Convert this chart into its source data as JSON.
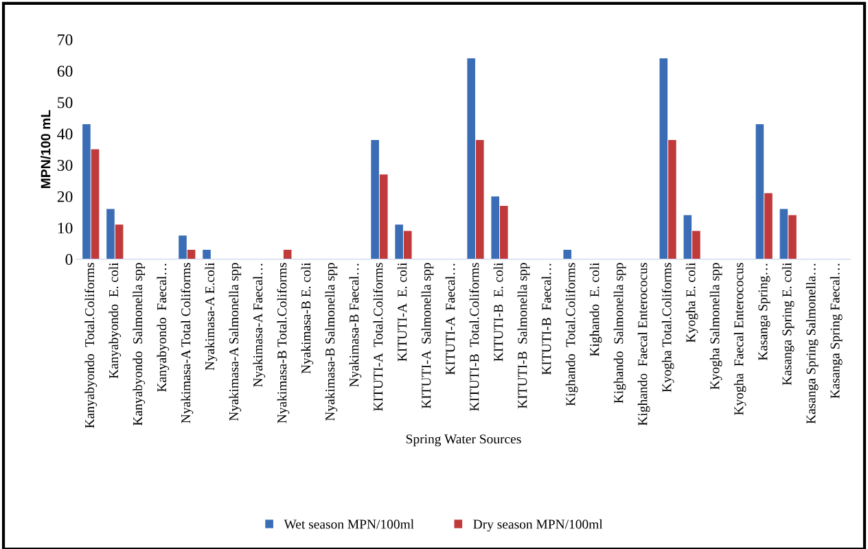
{
  "chart_data": {
    "type": "bar",
    "xlabel": "Spring Water Sources",
    "ylabel": "MPN/100 mL",
    "categories": [
      "Kanyabyondo  Total.Coliforms",
      "Kanyabyondo  E. coli",
      "Kanyabyondo  Salmonella spp",
      "Kanyabyondo  Faecal…",
      "Nyakimasa-A Total Coliforms",
      "Nyakimasa-A E.coli",
      "Nyakimasa-A Salmonella spp",
      "Nyakimasa-A Faecal…",
      "Nyakimasa-B Total.Coliforms",
      "Nyakimasa-B E. coli",
      "Nyakimasa-B Salmonella spp",
      "Nyakimasa-B Faecal…",
      "KITUTI-A  Total.Coliforms",
      "KITUTI-A  E. coli",
      "KITUTI-A  Salmonella spp",
      "KITUTI-A  Faecal…",
      "KITUTI-B  Total.Coliforms",
      "KITUTI-B  E. coli",
      "KITUTI-B  Salmonella spp",
      "KITUTI-B  Faecal…",
      "Kighando  Total.Coliforms",
      "Kighando  E. coli",
      "Kighando  Salmonella spp",
      "Kighando  Faecal Enterococus",
      "Kyogha Total.Coliforms",
      "Kyogha E. coli",
      "Kyogha Salmonella spp",
      "Kyogha  Faecal Enterococus",
      "Kasanga Spring…",
      "Kasanga Spring E. coli",
      "Kasanga Spring Salmonella…",
      "Kasanga Spring Faecal…"
    ],
    "series": [
      {
        "name": "Wet season MPN/100ml",
        "color": "#3a6db5",
        "values": [
          43,
          16,
          0,
          0,
          7.5,
          3,
          0,
          0,
          0,
          0,
          0,
          0,
          38,
          11,
          0,
          0,
          64,
          20,
          0,
          0,
          3,
          0,
          0,
          0,
          64,
          14,
          0,
          0,
          43,
          16,
          0,
          0
        ]
      },
      {
        "name": "Dry season MPN/100ml",
        "color": "#c0393b",
        "values": [
          35,
          11,
          0,
          0,
          3,
          0,
          0,
          0,
          3,
          0,
          0,
          0,
          27,
          9,
          0,
          0,
          38,
          17,
          0,
          0,
          0,
          0,
          0,
          0,
          38,
          9,
          0,
          0,
          21,
          14,
          0,
          0
        ]
      }
    ],
    "ylim": [
      0,
      70
    ],
    "yticks": [
      0,
      10,
      20,
      30,
      40,
      50,
      60,
      70
    ],
    "grid": false,
    "legend": "bottom"
  }
}
